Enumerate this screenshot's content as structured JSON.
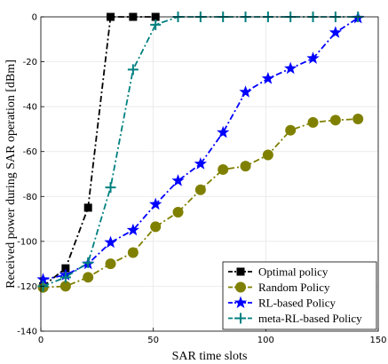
{
  "chart_data": {
    "type": "line",
    "xlabel": "SAR time slots",
    "ylabel": "Received power during SAR operation [dBm]",
    "xlim": [
      0,
      150
    ],
    "ylim": [
      -140,
      0
    ],
    "xticks": [
      "0",
      "50",
      "100",
      "150"
    ],
    "yticks": [
      "0",
      "-20",
      "-40",
      "-60",
      "-80",
      "-100",
      "-120",
      "-140"
    ],
    "grid": true,
    "legend_position": "bottom-right",
    "series": [
      {
        "name": "Optimal policy",
        "color": "#000000",
        "marker": "square",
        "x": [
          1,
          11,
          21,
          31,
          41,
          51
        ],
        "y": [
          -120,
          -112,
          -85,
          0,
          0,
          0
        ]
      },
      {
        "name": "Random Policy",
        "color": "#808000",
        "marker": "circle",
        "x": [
          1,
          11,
          21,
          31,
          41,
          51,
          61,
          71,
          81,
          91,
          101,
          111,
          121,
          131,
          141
        ],
        "y": [
          -120.5,
          -120,
          -116,
          -110,
          -105,
          -93.5,
          -87,
          -77,
          -68,
          -66.5,
          -61.5,
          -50.5,
          -47,
          -46,
          -45.5
        ]
      },
      {
        "name": "RL-based Policy",
        "color": "#0000ff",
        "marker": "star",
        "x": [
          1,
          11,
          21,
          31,
          41,
          51,
          61,
          71,
          81,
          91,
          101,
          111,
          121,
          131,
          141
        ],
        "y": [
          -117,
          -115,
          -110,
          -100.5,
          -95,
          -83.5,
          -73,
          -65.5,
          -51.5,
          -33.5,
          -27.5,
          -23,
          -18.5,
          -7,
          -0.5
        ]
      },
      {
        "name": "meta-RL-based Policy",
        "color": "#008080",
        "marker": "plus",
        "x": [
          1,
          11,
          21,
          31,
          41,
          51,
          61,
          71,
          81,
          91,
          101,
          111,
          121,
          131,
          141
        ],
        "y": [
          -120,
          -116,
          -109.5,
          -76,
          -23.5,
          -3.5,
          0,
          0,
          0,
          0,
          0,
          0,
          0,
          0,
          0
        ]
      }
    ]
  }
}
